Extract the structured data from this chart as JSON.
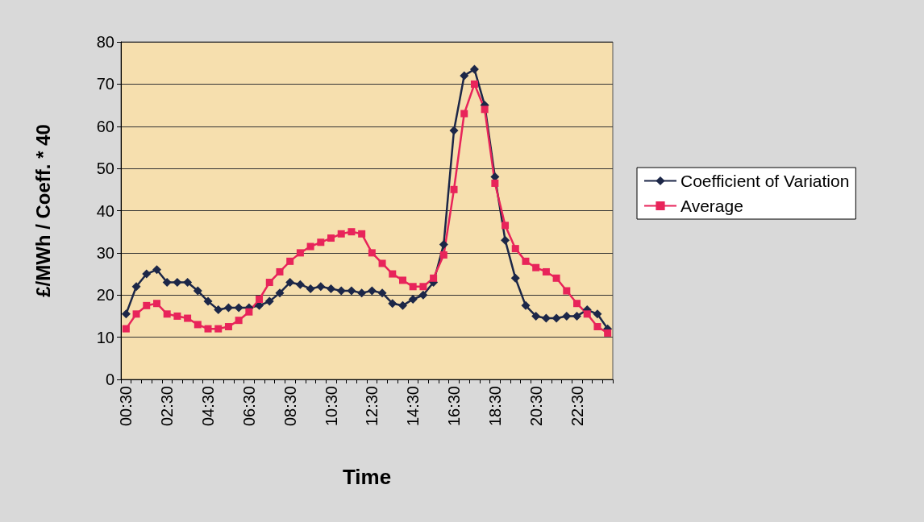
{
  "chart_data": {
    "type": "line",
    "xlabel": "Time",
    "ylabel": "£/MWh / Coeff. * 40",
    "categories": [
      "00:30",
      null,
      null,
      null,
      "02:30",
      null,
      null,
      null,
      "04:30",
      null,
      null,
      null,
      "06:30",
      null,
      null,
      null,
      "08:30",
      null,
      null,
      null,
      "10:30",
      null,
      null,
      null,
      "12:30",
      null,
      null,
      null,
      "14:30",
      null,
      null,
      null,
      "16:30",
      null,
      null,
      null,
      "18:30",
      null,
      null,
      null,
      "20:30",
      null,
      null,
      null,
      "22:30",
      null,
      null,
      null
    ],
    "series": [
      {
        "name": "Coefficient of Variation",
        "color": "#1c2748",
        "marker": "diamond",
        "values": [
          15.5,
          22,
          25,
          26,
          23,
          23,
          23,
          21,
          18.5,
          16.5,
          17,
          17,
          17,
          17.5,
          18.5,
          20.5,
          23,
          22.5,
          21.5,
          22,
          21.5,
          21,
          21,
          20.5,
          21,
          20.5,
          18,
          17.5,
          19,
          20,
          23,
          32,
          59,
          72,
          73.5,
          65,
          48,
          33,
          24,
          17.5,
          15,
          14.5,
          14.5,
          15,
          15,
          16.5,
          15.5,
          12
        ]
      },
      {
        "name": "Average",
        "color": "#e8245a",
        "marker": "square",
        "values": [
          12,
          15.5,
          17.5,
          18,
          15.5,
          15,
          14.5,
          13,
          12,
          12,
          12.5,
          14,
          16,
          19,
          23,
          25.5,
          28,
          30,
          31.5,
          32.5,
          33.5,
          34.5,
          35,
          34.5,
          30,
          27.5,
          25,
          23.5,
          22,
          22,
          24,
          29.5,
          45,
          63,
          70,
          64,
          46.5,
          36.5,
          31,
          28,
          26.5,
          25.5,
          24,
          21,
          18,
          15.5,
          12.5,
          11
        ]
      }
    ],
    "ylim": [
      0,
      80
    ],
    "yticks": [
      0,
      10,
      20,
      30,
      40,
      50,
      60,
      70,
      80
    ],
    "grid": "y",
    "legend": "right",
    "line_style": "solid"
  }
}
